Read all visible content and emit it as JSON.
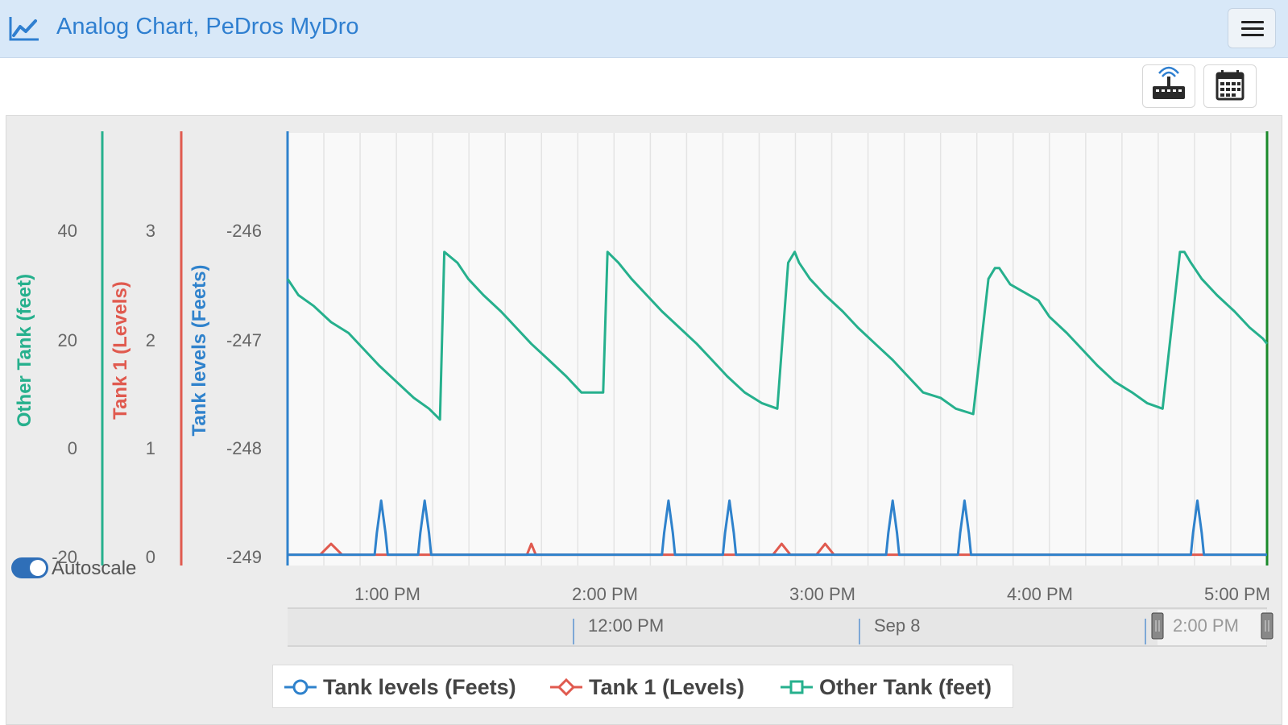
{
  "header": {
    "title": "Analog Chart, PeDros MyDro",
    "title_icon": "line-chart-icon",
    "menu_icon": "hamburger-menu-icon"
  },
  "toolbar": {
    "buttons": [
      {
        "icon": "device-signal-icon"
      },
      {
        "icon": "calendar-icon"
      }
    ]
  },
  "colors": {
    "tank_levels": "#2f82cc",
    "tank1": "#e05a4f",
    "other_tank": "#26b08d",
    "header_bg": "#d8e8f8",
    "title": "#2f7fd0"
  },
  "chart_data": {
    "type": "line",
    "x_tick_labels": [
      "1:00 PM",
      "2:00 PM",
      "3:00 PM",
      "4:00 PM",
      "5:00 PM"
    ],
    "xlim": [
      "12:30 PM",
      "5:00 PM"
    ],
    "grid": true,
    "legend_placement": "bottom",
    "axes": [
      {
        "label": "Other Tank (feet)",
        "ticks": [
          "40",
          "20",
          "0",
          "-20"
        ],
        "ylim": [
          -20,
          60
        ],
        "color": "#26b08d"
      },
      {
        "label": "Tank 1 (Levels)",
        "ticks": [
          "3",
          "2",
          "1",
          "0"
        ],
        "ylim": [
          -0.1,
          3.9
        ],
        "color": "#e05a4f"
      },
      {
        "label": "Tank levels (Feets)",
        "ticks": [
          "-246",
          "-247",
          "-248",
          "-249"
        ],
        "ylim": [
          -249.1,
          -245.1
        ],
        "color": "#2f82cc"
      }
    ],
    "series": [
      {
        "name": "Tank levels (Feets)",
        "axis": 2,
        "x_hours": [
          12.5,
          12.9,
          12.91,
          12.93,
          12.95,
          12.96,
          13.1,
          13.11,
          13.13,
          13.15,
          13.16,
          14.22,
          14.23,
          14.25,
          14.27,
          14.28,
          14.5,
          14.51,
          14.53,
          14.55,
          14.56,
          15.25,
          15.26,
          15.28,
          15.3,
          15.31,
          15.58,
          15.59,
          15.61,
          15.63,
          15.64,
          16.65,
          16.66,
          16.68,
          16.7,
          16.71,
          17.0
        ],
        "values": [
          -249,
          -249,
          -248.8,
          -248.5,
          -248.8,
          -249,
          -249,
          -248.8,
          -248.5,
          -248.8,
          -249,
          -249,
          -248.8,
          -248.5,
          -248.8,
          -249,
          -249,
          -248.8,
          -248.5,
          -248.8,
          -249,
          -249,
          -248.8,
          -248.5,
          -248.8,
          -249,
          -249,
          -248.8,
          -248.5,
          -248.8,
          -249,
          -249,
          -248.8,
          -248.5,
          -248.8,
          -249,
          -249
        ]
      },
      {
        "name": "Tank 1 (Levels)",
        "axis": 1,
        "x_hours": [
          12.5,
          12.65,
          12.7,
          12.75,
          13.6,
          13.62,
          13.64,
          14.73,
          14.77,
          14.81,
          14.93,
          14.97,
          15.01,
          17.0
        ],
        "values": [
          0,
          0,
          0.1,
          0,
          0,
          0.1,
          0,
          0,
          0.1,
          0,
          0,
          0.1,
          0,
          0
        ]
      },
      {
        "name": "Other Tank (feet)",
        "axis": 0,
        "x_hours": [
          12.5,
          12.55,
          12.62,
          12.7,
          12.78,
          12.85,
          12.92,
          13.0,
          13.08,
          13.15,
          13.2,
          13.22,
          13.28,
          13.33,
          13.4,
          13.48,
          13.55,
          13.62,
          13.7,
          13.78,
          13.85,
          13.95,
          13.97,
          14.02,
          14.08,
          14.15,
          14.22,
          14.3,
          14.38,
          14.45,
          14.52,
          14.6,
          14.68,
          14.75,
          14.8,
          14.83,
          14.85,
          14.9,
          14.97,
          15.05,
          15.12,
          15.2,
          15.28,
          15.35,
          15.42,
          15.5,
          15.57,
          15.65,
          15.72,
          15.75,
          15.77,
          15.82,
          15.95,
          16.0,
          16.08,
          16.15,
          16.22,
          16.3,
          16.38,
          16.45,
          16.52,
          16.6,
          16.62,
          16.65,
          16.7,
          16.77,
          16.85,
          16.92,
          16.98,
          17.0
        ],
        "values": [
          33,
          30,
          28,
          25,
          23,
          20,
          17,
          14,
          11,
          9,
          7,
          38,
          36,
          33,
          30,
          27,
          24,
          21,
          18,
          15,
          12,
          12,
          38,
          36,
          33,
          30,
          27,
          24,
          21,
          18,
          15,
          12,
          10,
          9,
          36,
          38,
          36,
          33,
          30,
          27,
          24,
          21,
          18,
          15,
          12,
          11,
          9,
          8,
          33,
          35,
          35,
          32,
          29,
          26,
          23,
          20,
          17,
          14,
          12,
          10,
          9,
          38,
          38,
          36,
          33,
          30,
          27,
          24,
          22,
          21
        ]
      }
    ],
    "navigator": {
      "labels": [
        "12:00 PM",
        "Sep 8",
        "2:00 PM"
      ]
    },
    "autoscale": {
      "label": "Autoscale",
      "enabled": true
    },
    "legend": [
      {
        "label": "Tank levels (Feets)",
        "marker": "circle",
        "color": "#2f82cc"
      },
      {
        "label": "Tank 1 (Levels)",
        "marker": "diamond",
        "color": "#e05a4f"
      },
      {
        "label": "Other Tank (feet)",
        "marker": "square",
        "color": "#26b08d"
      }
    ]
  }
}
